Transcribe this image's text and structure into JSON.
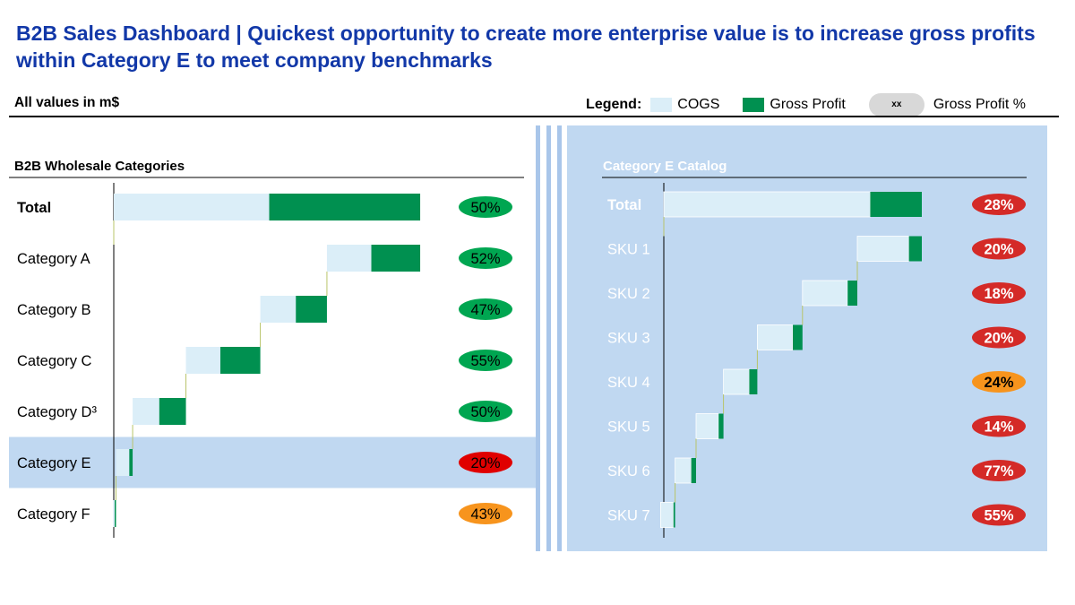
{
  "header": {
    "title": "B2B Sales Dashboard | Quickest opportunity to create more enterprise value is to increase gross profits within Category E to meet company benchmarks",
    "units": "All values in m$"
  },
  "legend": {
    "label": "Legend:",
    "cogs": "COGS",
    "gross_profit": "Gross Profit",
    "pill_text": "xx",
    "gross_profit_pct": "Gross Profit %"
  },
  "colors": {
    "cogs": "#dbeef8",
    "gross_profit": "#009050",
    "pct_green": "#00a651",
    "pct_red": "#e00000",
    "pct_dark_red": "#d42a27",
    "pct_orange": "#f7941d",
    "highlight_row": "#c0d8f1",
    "connector": "#b8c46a"
  },
  "chart_data": [
    {
      "type": "bar",
      "subtype": "waterfall",
      "title": "B2B Wholesale Categories",
      "categories": [
        "Total",
        "Category A",
        "Category B",
        "Category C",
        "Category D³",
        "Category E",
        "Category F"
      ],
      "bold_categories": [
        "Total"
      ],
      "highlighted": "Category E",
      "series": [
        {
          "name": "COGS",
          "values": [
            70,
            20,
            16,
            15.5,
            12,
            6,
            0.7
          ]
        },
        {
          "name": "Gross Profit",
          "values": [
            68,
            22,
            14,
            18,
            12,
            1.5,
            0.6
          ]
        }
      ],
      "gross_profit_pct": [
        "50%",
        "52%",
        "47%",
        "55%",
        "50%",
        "20%",
        "43%"
      ],
      "pct_status": [
        "green",
        "green",
        "green",
        "green",
        "green",
        "red",
        "orange"
      ],
      "xlim": [
        0,
        140
      ]
    },
    {
      "type": "bar",
      "subtype": "waterfall",
      "title": "Category E Catalog",
      "categories": [
        "Total",
        "SKU 1",
        "SKU 2",
        "SKU 3",
        "SKU 4",
        "SKU 5",
        "SKU 6",
        "SKU 7"
      ],
      "bold_categories": [
        "Total"
      ],
      "series": [
        {
          "name": "COGS",
          "values": [
            64,
            16,
            14,
            11,
            8,
            7,
            5,
            4
          ]
        },
        {
          "name": "Gross Profit",
          "values": [
            16,
            4,
            3,
            3,
            2.5,
            1.5,
            1.5,
            0.5
          ]
        }
      ],
      "gross_profit_pct": [
        "28%",
        "20%",
        "18%",
        "20%",
        "24%",
        "14%",
        "77%",
        "55%"
      ],
      "pct_status": [
        "dark-red",
        "dark-red",
        "dark-red",
        "dark-red",
        "orange",
        "dark-red",
        "dark-red",
        "dark-red"
      ],
      "xlim": [
        0,
        80
      ]
    }
  ]
}
